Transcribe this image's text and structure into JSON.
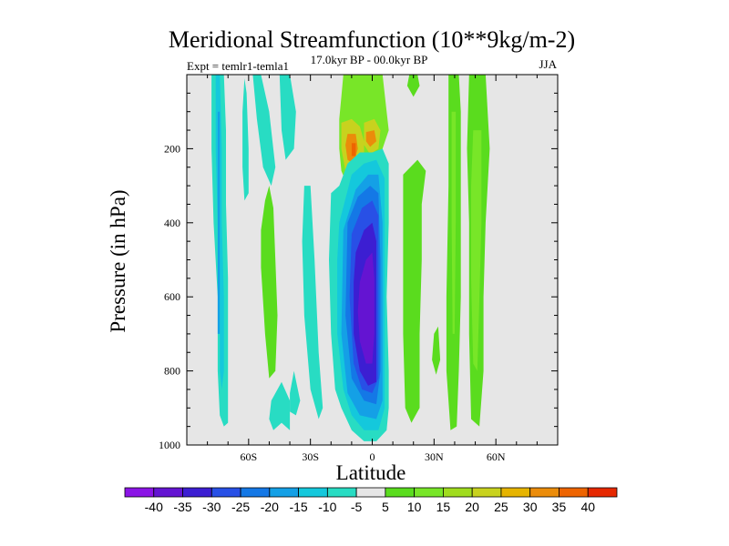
{
  "chart_data": {
    "type": "contour",
    "title": "Meridional Streamfunction (10**9kg/m-2)",
    "subtitle_left": "Expt = temlr1-temla1",
    "subtitle_center": "17.0kyr BP - 00.0kyr BP",
    "subtitle_right": "JJA",
    "xlabel": "Latitude",
    "ylabel": "Pressure (in hPa)",
    "xlim": [
      -90,
      90
    ],
    "ylim": [
      1000,
      0
    ],
    "x_ticks": [
      {
        "value": -60,
        "label": "60S"
      },
      {
        "value": -30,
        "label": "30S"
      },
      {
        "value": 0,
        "label": "0"
      },
      {
        "value": 30,
        "label": "30N"
      },
      {
        "value": 60,
        "label": "60N"
      }
    ],
    "y_ticks": [
      {
        "value": 200,
        "label": "200"
      },
      {
        "value": 400,
        "label": "400"
      },
      {
        "value": 600,
        "label": "600"
      },
      {
        "value": 800,
        "label": "800"
      },
      {
        "value": 1000,
        "label": "1000"
      }
    ],
    "background_fill": "#e6e6e6",
    "colorbar": {
      "labels": [
        "-40",
        "-35",
        "-30",
        "-25",
        "-20",
        "-15",
        "-10",
        "-5",
        "5",
        "10",
        "15",
        "20",
        "25",
        "30",
        "35",
        "40"
      ],
      "colors": [
        "#8b14e6",
        "#6414d2",
        "#3c1ed2",
        "#2850e6",
        "#1478e6",
        "#14a0e6",
        "#14c8dc",
        "#28dcc3",
        "#e6e6e6",
        "#5adc1e",
        "#78e628",
        "#a0dc1e",
        "#c8d21e",
        "#e6b400",
        "#eb8c0a",
        "#ee6400",
        "#e62800"
      ]
    },
    "contour_regions": [
      {
        "value": -7,
        "points": [
          [
            -78,
            0
          ],
          [
            -72,
            0
          ],
          [
            -71,
            150
          ],
          [
            -71,
            350
          ],
          [
            -70,
            550
          ],
          [
            -70,
            750
          ],
          [
            -70,
            850
          ],
          [
            -70,
            940
          ],
          [
            -72,
            950
          ],
          [
            -74,
            920
          ],
          [
            -75,
            800
          ],
          [
            -75,
            600
          ],
          [
            -77,
            400
          ],
          [
            -78,
            200
          ]
        ]
      },
      {
        "value": -12,
        "points": [
          [
            -76,
            0
          ],
          [
            -74,
            0
          ],
          [
            -73,
            200
          ],
          [
            -73,
            400
          ],
          [
            -72,
            600
          ],
          [
            -72,
            800
          ],
          [
            -73,
            850
          ],
          [
            -74,
            800
          ],
          [
            -74,
            600
          ],
          [
            -75,
            400
          ],
          [
            -76,
            200
          ]
        ]
      },
      {
        "value": -20,
        "points": [
          [
            -75,
            100
          ],
          [
            -74,
            100
          ],
          [
            -74,
            300
          ],
          [
            -74,
            500
          ],
          [
            -74,
            700
          ],
          [
            -75,
            700
          ],
          [
            -75,
            500
          ],
          [
            -75,
            300
          ]
        ]
      },
      {
        "value": -7,
        "points": [
          [
            -62,
            10
          ],
          [
            -61,
            50
          ],
          [
            -60,
            200
          ],
          [
            -60,
            320
          ],
          [
            -62,
            340
          ],
          [
            -63,
            250
          ],
          [
            -63,
            100
          ]
        ]
      },
      {
        "value": -7,
        "points": [
          [
            -58,
            0
          ],
          [
            -54,
            0
          ],
          [
            -50,
            100
          ],
          [
            -47,
            250
          ],
          [
            -49,
            300
          ],
          [
            -53,
            250
          ],
          [
            -56,
            120
          ]
        ]
      },
      {
        "value": -7,
        "points": [
          [
            -45,
            0
          ],
          [
            -40,
            0
          ],
          [
            -37,
            100
          ],
          [
            -38,
            200
          ],
          [
            -42,
            230
          ],
          [
            -44,
            150
          ]
        ]
      },
      {
        "value": -7,
        "points": [
          [
            -49,
            880
          ],
          [
            -44,
            830
          ],
          [
            -40,
            880
          ],
          [
            -40,
            960
          ],
          [
            -44,
            940
          ],
          [
            -48,
            960
          ],
          [
            -50,
            930
          ]
        ]
      },
      {
        "value": -7,
        "points": [
          [
            -40,
            860
          ],
          [
            -38,
            800
          ],
          [
            -35,
            880
          ],
          [
            -37,
            920
          ],
          [
            -40,
            910
          ]
        ]
      },
      {
        "value": 10,
        "points": [
          [
            -14,
            0
          ],
          [
            5,
            0
          ],
          [
            7,
            100
          ],
          [
            8,
            150
          ],
          [
            5,
            200
          ],
          [
            0,
            230
          ],
          [
            -3,
            240
          ],
          [
            -6,
            270
          ],
          [
            -8,
            300
          ],
          [
            -12,
            300
          ],
          [
            -15,
            260
          ],
          [
            -16,
            200
          ],
          [
            -16,
            120
          ],
          [
            -15,
            60
          ]
        ]
      },
      {
        "value": 20,
        "points": [
          [
            -15,
            130
          ],
          [
            -10,
            120
          ],
          [
            -6,
            140
          ],
          [
            -4,
            180
          ],
          [
            -4,
            240
          ],
          [
            -8,
            270
          ],
          [
            -13,
            260
          ],
          [
            -15,
            200
          ]
        ]
      },
      {
        "value": 20,
        "points": [
          [
            -4,
            130
          ],
          [
            1,
            120
          ],
          [
            4,
            150
          ],
          [
            3,
            200
          ],
          [
            -1,
            215
          ],
          [
            -4,
            190
          ]
        ]
      },
      {
        "value": 30,
        "points": [
          [
            -12,
            160
          ],
          [
            -8,
            160
          ],
          [
            -7,
            200
          ],
          [
            -9,
            240
          ],
          [
            -12,
            230
          ],
          [
            -13,
            190
          ]
        ]
      },
      {
        "value": 30,
        "points": [
          [
            -3,
            155
          ],
          [
            1,
            150
          ],
          [
            2,
            180
          ],
          [
            -1,
            195
          ],
          [
            -3,
            180
          ]
        ]
      },
      {
        "value": 37,
        "points": [
          [
            -10,
            185
          ],
          [
            -8,
            185
          ],
          [
            -8,
            220
          ],
          [
            -10,
            220
          ]
        ]
      },
      {
        "value": -7,
        "points": [
          [
            -20,
            320
          ],
          [
            -16,
            300
          ],
          [
            -12,
            240
          ],
          [
            -6,
            210
          ],
          [
            0,
            210
          ],
          [
            5,
            200
          ],
          [
            8,
            240
          ],
          [
            8,
            400
          ],
          [
            7,
            600
          ],
          [
            8,
            800
          ],
          [
            8,
            900
          ],
          [
            7,
            960
          ],
          [
            2,
            990
          ],
          [
            -4,
            990
          ],
          [
            -10,
            960
          ],
          [
            -15,
            900
          ],
          [
            -18,
            850
          ],
          [
            -20,
            700
          ],
          [
            -21,
            500
          ]
        ]
      },
      {
        "value": -12,
        "points": [
          [
            -16,
            400
          ],
          [
            -10,
            270
          ],
          [
            -4,
            240
          ],
          [
            2,
            230
          ],
          [
            6,
            280
          ],
          [
            6,
            500
          ],
          [
            6,
            700
          ],
          [
            6,
            900
          ],
          [
            3,
            960
          ],
          [
            -4,
            960
          ],
          [
            -10,
            920
          ],
          [
            -14,
            850
          ],
          [
            -17,
            700
          ],
          [
            -17,
            500
          ]
        ]
      },
      {
        "value": -17,
        "points": [
          [
            -14,
            420
          ],
          [
            -8,
            310
          ],
          [
            -2,
            270
          ],
          [
            3,
            270
          ],
          [
            5,
            400
          ],
          [
            5,
            700
          ],
          [
            5,
            880
          ],
          [
            2,
            930
          ],
          [
            -6,
            920
          ],
          [
            -12,
            860
          ],
          [
            -15,
            700
          ]
        ]
      },
      {
        "value": -22,
        "points": [
          [
            -12,
            400
          ],
          [
            -7,
            330
          ],
          [
            -1,
            300
          ],
          [
            3,
            320
          ],
          [
            4,
            500
          ],
          [
            4,
            800
          ],
          [
            2,
            890
          ],
          [
            -4,
            880
          ],
          [
            -10,
            820
          ],
          [
            -13,
            650
          ]
        ]
      },
      {
        "value": -27,
        "points": [
          [
            -10,
            430
          ],
          [
            -5,
            360
          ],
          [
            0,
            340
          ],
          [
            3,
            380
          ],
          [
            3,
            600
          ],
          [
            3,
            820
          ],
          [
            0,
            860
          ],
          [
            -5,
            850
          ],
          [
            -9,
            780
          ],
          [
            -11,
            600
          ]
        ]
      },
      {
        "value": -32,
        "points": [
          [
            -8,
            480
          ],
          [
            -4,
            420
          ],
          [
            0,
            400
          ],
          [
            2,
            450
          ],
          [
            2,
            700
          ],
          [
            2,
            830
          ],
          [
            -2,
            840
          ],
          [
            -6,
            800
          ],
          [
            -9,
            700
          ],
          [
            -9,
            560
          ]
        ]
      },
      {
        "value": -37,
        "points": [
          [
            -6,
            560
          ],
          [
            -3,
            500
          ],
          [
            0,
            480
          ],
          [
            1,
            550
          ],
          [
            1,
            700
          ],
          [
            0,
            780
          ],
          [
            -3,
            780
          ],
          [
            -6,
            720
          ],
          [
            -7,
            640
          ]
        ]
      },
      {
        "value": -7,
        "points": [
          [
            -33,
            300
          ],
          [
            -30,
            300
          ],
          [
            -28,
            500
          ],
          [
            -26,
            750
          ],
          [
            -24,
            900
          ],
          [
            -26,
            930
          ],
          [
            -30,
            850
          ],
          [
            -33,
            650
          ],
          [
            -34,
            450
          ]
        ]
      },
      {
        "value": 7,
        "points": [
          [
            -52,
            340
          ],
          [
            -50,
            300
          ],
          [
            -48,
            360
          ],
          [
            -47,
            500
          ],
          [
            -46,
            650
          ],
          [
            -47,
            800
          ],
          [
            -50,
            820
          ],
          [
            -52,
            700
          ],
          [
            -54,
            520
          ],
          [
            -54,
            420
          ]
        ]
      },
      {
        "value": 7,
        "points": [
          [
            15,
            270
          ],
          [
            22,
            230
          ],
          [
            26,
            260
          ],
          [
            24,
            350
          ],
          [
            24,
            500
          ],
          [
            23,
            700
          ],
          [
            23,
            900
          ],
          [
            19,
            940
          ],
          [
            16,
            900
          ],
          [
            15,
            700
          ],
          [
            15,
            500
          ],
          [
            15,
            350
          ]
        ]
      },
      {
        "value": 7,
        "points": [
          [
            37,
            0
          ],
          [
            42,
            0
          ],
          [
            43,
            100
          ],
          [
            43,
            300
          ],
          [
            43,
            600
          ],
          [
            42,
            800
          ],
          [
            41,
            950
          ],
          [
            38,
            960
          ],
          [
            36,
            800
          ],
          [
            36,
            600
          ],
          [
            37,
            300
          ],
          [
            37,
            100
          ]
        ]
      },
      {
        "value": 12,
        "points": [
          [
            38.5,
            100
          ],
          [
            40.5,
            100
          ],
          [
            40.5,
            400
          ],
          [
            40,
            700
          ],
          [
            39,
            700
          ],
          [
            38.5,
            400
          ]
        ]
      },
      {
        "value": 7,
        "points": [
          [
            47,
            0
          ],
          [
            55,
            0
          ],
          [
            57,
            200
          ],
          [
            55,
            400
          ],
          [
            54,
            600
          ],
          [
            54,
            800
          ],
          [
            52,
            950
          ],
          [
            48,
            930
          ],
          [
            47,
            700
          ],
          [
            47,
            400
          ],
          [
            46,
            200
          ]
        ]
      },
      {
        "value": 12,
        "points": [
          [
            49,
            150
          ],
          [
            53,
            150
          ],
          [
            53,
            400
          ],
          [
            52,
            600
          ],
          [
            51,
            800
          ],
          [
            49,
            780
          ],
          [
            48,
            550
          ],
          [
            48,
            300
          ]
        ]
      },
      {
        "value": 7,
        "points": [
          [
            30,
            700
          ],
          [
            32,
            680
          ],
          [
            33,
            770
          ],
          [
            31,
            810
          ],
          [
            29,
            770
          ]
        ]
      },
      {
        "value": 7,
        "points": [
          [
            18,
            0
          ],
          [
            22,
            0
          ],
          [
            23,
            30
          ],
          [
            20,
            60
          ],
          [
            17,
            30
          ]
        ]
      }
    ]
  }
}
